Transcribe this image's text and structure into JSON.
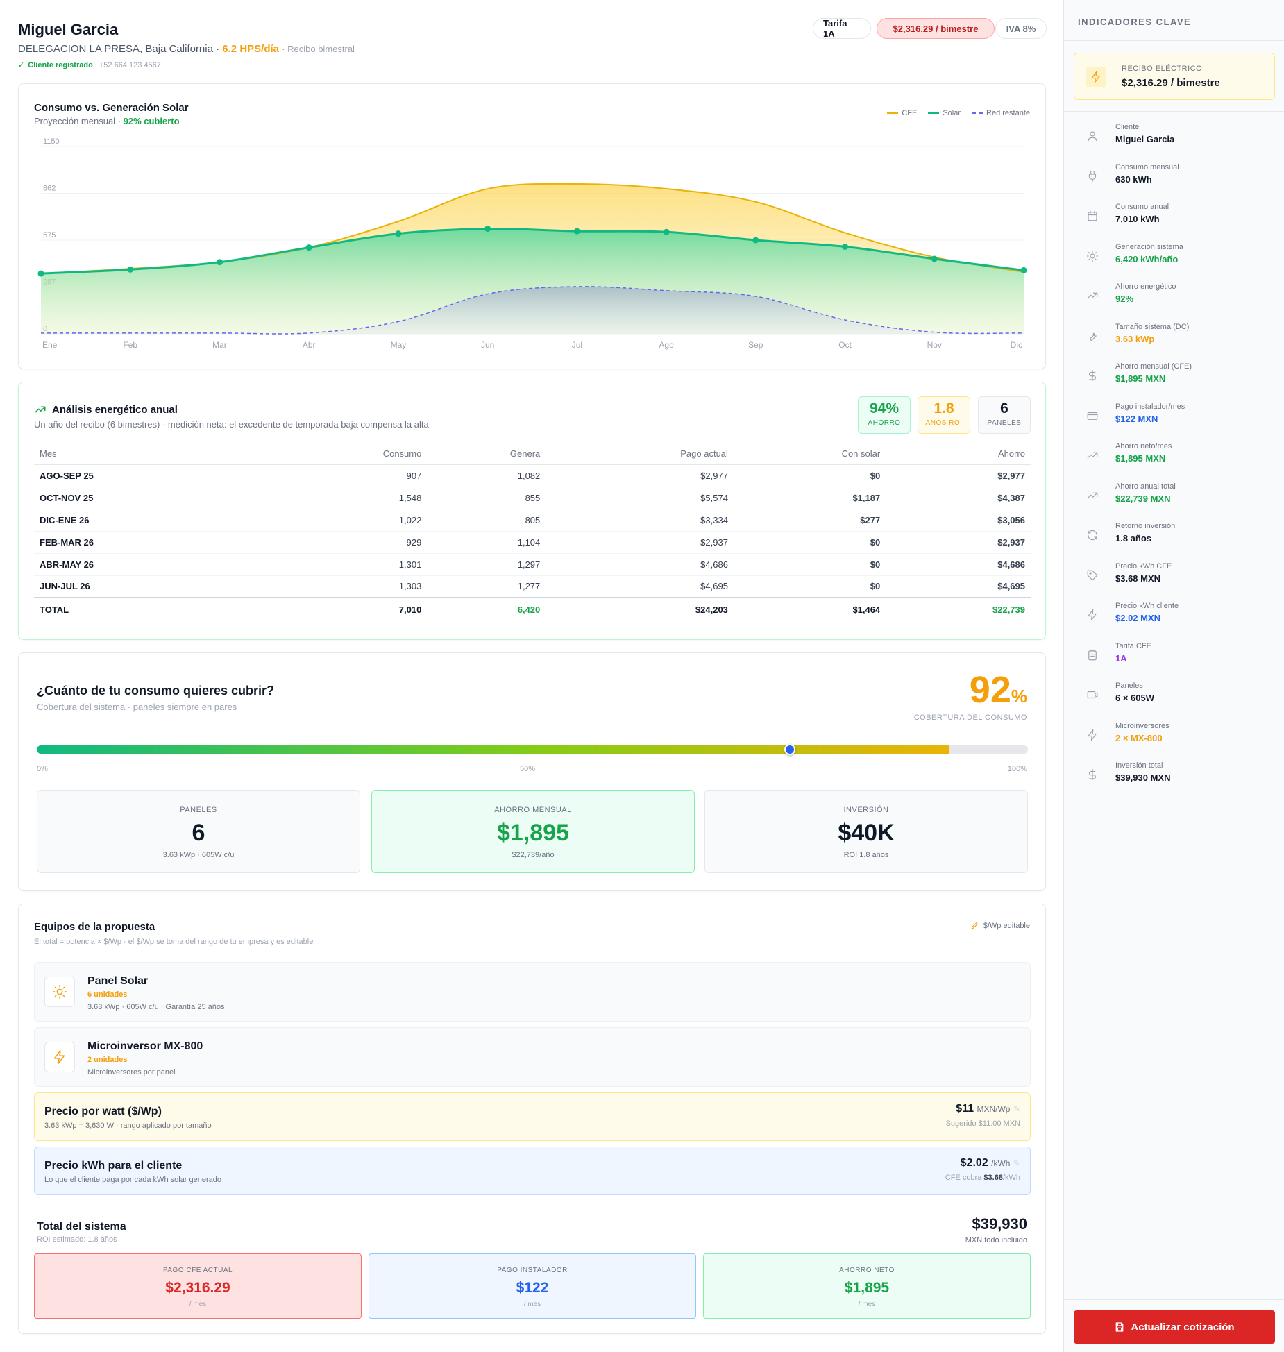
{
  "header": {
    "name": "Miguel Garcia",
    "location": "DELEGACION LA PRESA, Baja California",
    "hps": "6.2 HPS/día",
    "billing": "Recibo bimestral",
    "registered": "Cliente registrado",
    "phone": "+52 664 123 4567",
    "tarifa": "Tarifa 1A",
    "bill": "$2,316.29 / bimestre",
    "iva": "IVA 8%"
  },
  "chart": {
    "title": "Consumo vs. Generación Solar",
    "subtitle": "Proyección mensual · ",
    "coverage": "92% cubierto",
    "legend": [
      "CFE",
      "Solar",
      "Red restante"
    ]
  },
  "chart_data": {
    "type": "area",
    "x": [
      "Ene",
      "Feb",
      "Mar",
      "Abr",
      "May",
      "Jun",
      "Jul",
      "Ago",
      "Sep",
      "Oct",
      "Nov",
      "Dic"
    ],
    "yticks": [
      0,
      287,
      575,
      862,
      1150
    ],
    "ylim": [
      0,
      1150
    ],
    "grid": true,
    "legend_position": "top-right",
    "series": [
      {
        "name": "CFE",
        "color": "#eab308",
        "values": [
          370,
          400,
          440,
          530,
          690,
          890,
          920,
          890,
          810,
          620,
          470,
          380
        ]
      },
      {
        "name": "Solar",
        "color": "#10b981",
        "values": [
          370,
          395,
          440,
          530,
          615,
          645,
          630,
          625,
          575,
          535,
          460,
          390
        ]
      },
      {
        "name": "Red restante",
        "color": "#6366f1",
        "values": [
          5,
          5,
          5,
          5,
          75,
          245,
          290,
          265,
          230,
          85,
          10,
          5
        ]
      }
    ]
  },
  "analysis": {
    "title": "Análisis energético anual",
    "subtitle": "Un año del recibo (6 bimestres) · medición neta: el excedente de temporada baja compensa la alta",
    "stats": [
      {
        "value": "94%",
        "label": "AHORRO"
      },
      {
        "value": "1.8",
        "label": "AÑOS ROI"
      },
      {
        "value": "6",
        "label": "PANELES"
      }
    ],
    "columns": [
      "Mes",
      "Consumo",
      "Genera",
      "Pago actual",
      "Con solar",
      "Ahorro"
    ],
    "rows": [
      [
        "AGO-SEP 25",
        "907",
        "1,082",
        "$2,977",
        "$0",
        "$2,977"
      ],
      [
        "OCT-NOV 25",
        "1,548",
        "855",
        "$5,574",
        "$1,187",
        "$4,387"
      ],
      [
        "DIC-ENE 26",
        "1,022",
        "805",
        "$3,334",
        "$277",
        "$3,056"
      ],
      [
        "FEB-MAR 26",
        "929",
        "1,104",
        "$2,937",
        "$0",
        "$2,937"
      ],
      [
        "ABR-MAY 26",
        "1,301",
        "1,297",
        "$4,686",
        "$0",
        "$4,686"
      ],
      [
        "JUN-JUL 26",
        "1,303",
        "1,277",
        "$4,695",
        "$0",
        "$4,695"
      ]
    ],
    "total": [
      "TOTAL",
      "7,010",
      "6,420",
      "$24,203",
      "$1,464",
      "$22,739"
    ]
  },
  "coverage": {
    "title": "¿Cuánto de tu consumo quieres cubrir?",
    "subtitle": "Cobertura del sistema · paneles siempre en pares",
    "percent": "92",
    "percent_sign": "%",
    "percent_label": "COBERTURA DEL CONSUMO",
    "slider_value": 76,
    "fill_value": 92,
    "ticks": [
      "0%",
      "50%",
      "100%"
    ],
    "boxes": [
      {
        "label": "PANELES",
        "value": "6",
        "sub": "3.63 kWp · 605W c/u"
      },
      {
        "label": "AHORRO MENSUAL",
        "value": "$1,895",
        "sub": "$22,739/año"
      },
      {
        "label": "INVERSIÓN",
        "value": "$40K",
        "sub": "ROI 1.8 años"
      }
    ]
  },
  "equipment": {
    "title": "Equipos de la propuesta",
    "subtitle": "El total = potencia × $/Wp · el $/Wp se toma del rango de tu empresa y es editable",
    "editable": "$/Wp editable",
    "items": [
      {
        "name": "Panel Solar",
        "units": "6 unidades",
        "desc": "3.63 kWp · 605W c/u · Garantía 25 años",
        "icon": "sun-icon"
      },
      {
        "name": "Microinversor MX-800",
        "units": "2 unidades",
        "desc": "Microinversores por panel",
        "icon": "bolt-icon"
      }
    ],
    "watt": {
      "title": "Precio por watt ($/Wp)",
      "desc": "3.63 kWp = 3,630 W · rango aplicado por tamaño",
      "value": "$11",
      "unit": "MXN/Wp",
      "sub": "Sugerido $11.00 MXN"
    },
    "kwh": {
      "title": "Precio kWh para el cliente",
      "desc": "Lo que el cliente paga por cada kWh solar generado",
      "value": "$2.02",
      "unit": "/kWh",
      "sub_pre": "CFE cobra ",
      "sub_val": "$3.68",
      "sub_post": "/kWh"
    },
    "total": {
      "title": "Total del sistema",
      "sub": "ROI estimado: 1.8 años",
      "value": "$39,930",
      "value_sub": "MXN todo incluido"
    },
    "boxes": [
      {
        "label": "PAGO CFE ACTUAL",
        "value": "$2,316.29",
        "sub": "/ mes"
      },
      {
        "label": "PAGO INSTALADOR",
        "value": "$122",
        "sub": "/ mes"
      },
      {
        "label": "AHORRO NETO",
        "value": "$1,895",
        "sub": "/ mes"
      }
    ]
  },
  "sidebar": {
    "title": "INDICADORES CLAVE",
    "bill_label": "RECIBO ELÉCTRICO",
    "bill_value": "$2,316.29 / bimestre",
    "kpis": [
      {
        "label": "Cliente",
        "value": "Miguel Garcia",
        "color": "#111827",
        "icon": "user-icon"
      },
      {
        "label": "Consumo mensual",
        "value": "630 kWh",
        "color": "#111827",
        "icon": "plug-icon"
      },
      {
        "label": "Consumo anual",
        "value": "7,010 kWh",
        "color": "#111827",
        "icon": "calendar-icon"
      },
      {
        "label": "Generación sistema",
        "value": "6,420 kWh/año",
        "color": "#16a34a",
        "icon": "sun-icon"
      },
      {
        "label": "Ahorro energético",
        "value": "92%",
        "color": "#16a34a",
        "icon": "trend-icon"
      },
      {
        "label": "Tamaño sistema (DC)",
        "value": "3.63 kWp",
        "color": "#f59e0b",
        "icon": "wrench-icon"
      },
      {
        "label": "Ahorro mensual (CFE)",
        "value": "$1,895 MXN",
        "color": "#16a34a",
        "icon": "dollar-icon"
      },
      {
        "label": "Pago instalador/mes",
        "value": "$122 MXN",
        "color": "#2563eb",
        "icon": "card-icon"
      },
      {
        "label": "Ahorro neto/mes",
        "value": "$1,895 MXN",
        "color": "#16a34a",
        "icon": "trend-icon"
      },
      {
        "label": "Ahorro anual total",
        "value": "$22,739 MXN",
        "color": "#16a34a",
        "icon": "trend-icon"
      },
      {
        "label": "Retorno inversión",
        "value": "1.8 años",
        "color": "#111827",
        "icon": "refresh-icon"
      },
      {
        "label": "Precio kWh CFE",
        "value": "$3.68 MXN",
        "color": "#111827",
        "icon": "tag-icon"
      },
      {
        "label": "Precio kWh cliente",
        "value": "$2.02 MXN",
        "color": "#2563eb",
        "icon": "bolt-icon"
      },
      {
        "label": "Tarifa CFE",
        "value": "1A",
        "color": "#9333ea",
        "icon": "clipboard-icon"
      },
      {
        "label": "Paneles",
        "value": "6 × 605W",
        "color": "#111827",
        "icon": "panel-icon"
      },
      {
        "label": "Microinversores",
        "value": "2 × MX-800",
        "color": "#f59e0b",
        "icon": "bolt-icon"
      },
      {
        "label": "Inversión total",
        "value": "$39,930 MXN",
        "color": "#111827",
        "icon": "dollar-icon"
      }
    ],
    "action": "Actualizar cotización"
  }
}
